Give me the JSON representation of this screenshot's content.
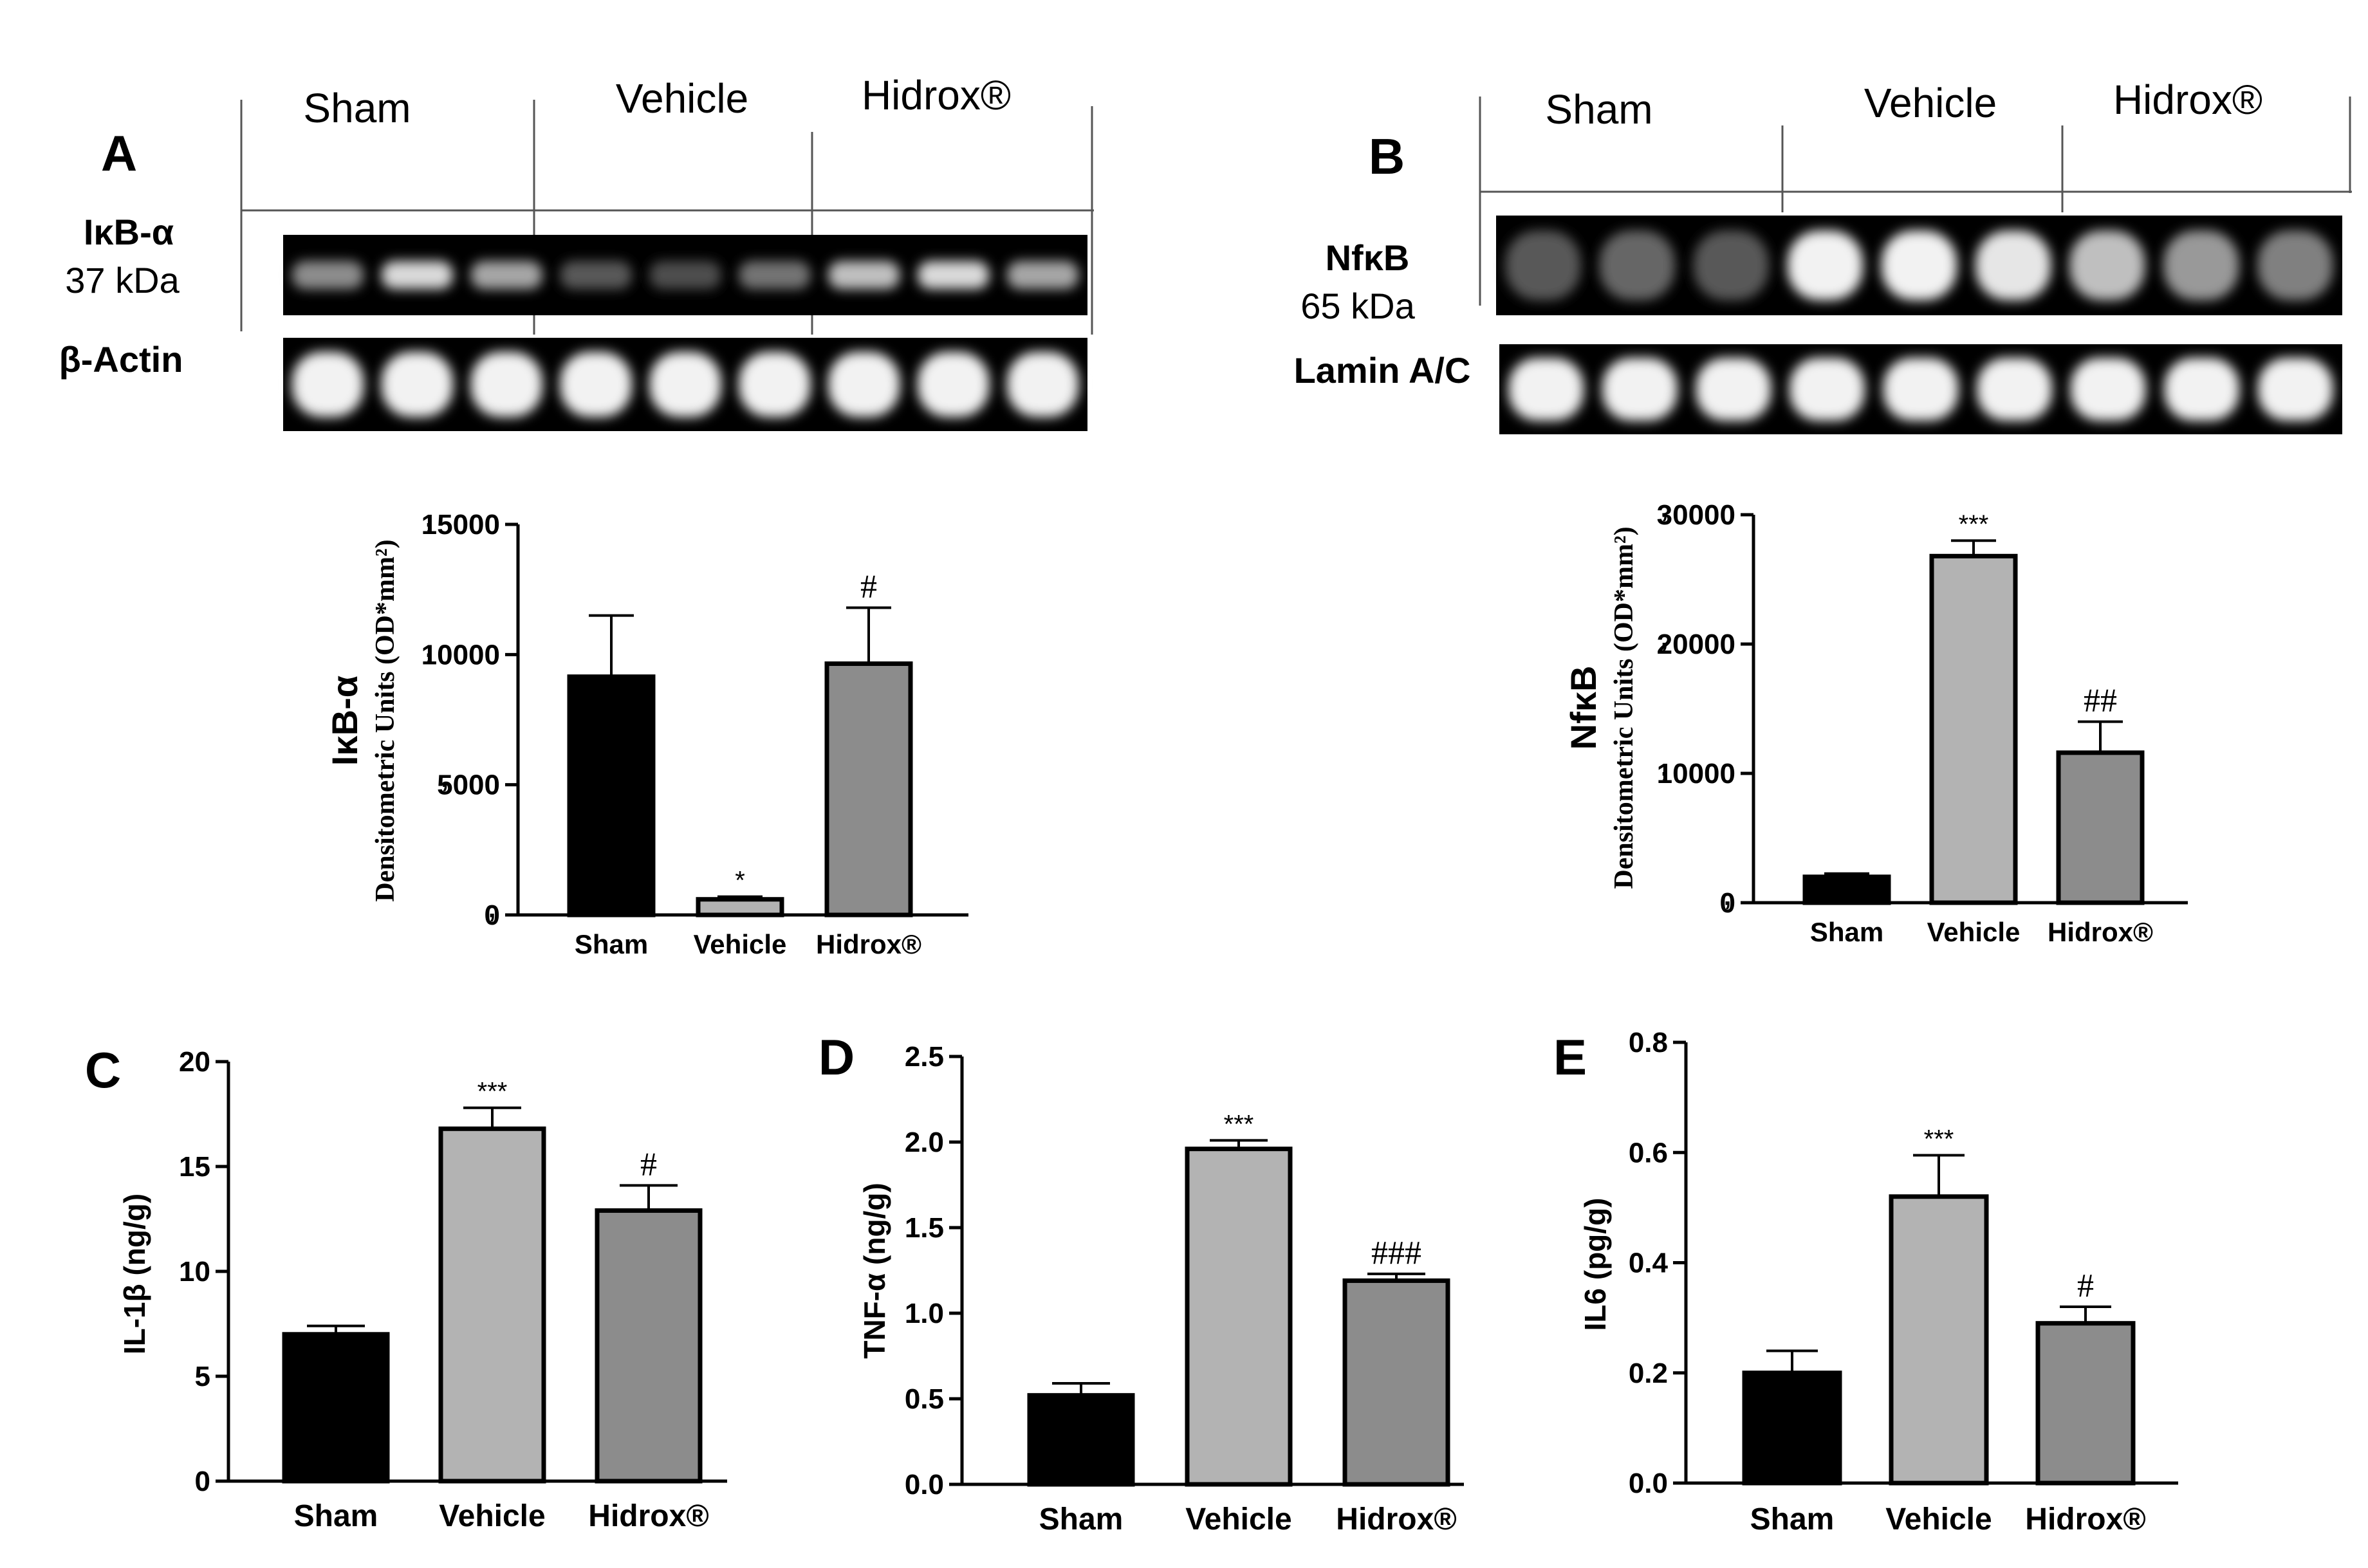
{
  "panels": {
    "A": {
      "letter": "A",
      "blot": {
        "groups": [
          "Sham",
          "Vehicle",
          "Hidrox®"
        ],
        "rows": [
          {
            "label": "IκB-α",
            "sublabel": "37 kDa",
            "intensities": [
              0.55,
              0.85,
              0.65,
              0.35,
              0.3,
              0.45,
              0.75,
              0.85,
              0.65
            ],
            "band_height": 0.35
          },
          {
            "label": "β-Actin",
            "sublabel": "",
            "intensities": [
              0.95,
              0.95,
              0.95,
              0.95,
              0.95,
              0.95,
              0.95,
              0.95,
              0.95
            ],
            "band_height": 0.7
          }
        ]
      }
    },
    "B": {
      "letter": "B",
      "blot": {
        "groups": [
          "Sham",
          "Vehicle",
          "Hidrox®"
        ],
        "rows": [
          {
            "label": "NfκB",
            "sublabel": "65 kDa",
            "intensities": [
              0.35,
              0.4,
              0.35,
              0.95,
              0.95,
              0.9,
              0.75,
              0.6,
              0.5
            ],
            "band_height": 0.7
          },
          {
            "label": "Lamin A/C",
            "sublabel": "",
            "intensities": [
              0.95,
              0.95,
              0.95,
              0.95,
              0.95,
              0.95,
              0.95,
              0.95,
              0.95
            ],
            "band_height": 0.7
          }
        ]
      }
    },
    "C": {
      "letter": "C"
    },
    "D": {
      "letter": "D"
    },
    "E": {
      "letter": "E"
    }
  },
  "chart_data": [
    {
      "id": "A",
      "type": "bar",
      "categories": [
        "Sham",
        "Vehicle",
        "Hidrox®"
      ],
      "values": [
        9150,
        600,
        9650
      ],
      "errors": [
        2350,
        100,
        2150
      ],
      "annotations": [
        "",
        "*",
        "#"
      ],
      "ylabel_main": "IκB-α",
      "ylabel_sub": "Densitometric Units (OD*mm²)",
      "ylim": [
        0,
        15000
      ],
      "ticks": [
        0,
        5000,
        10000,
        15000
      ],
      "tick_labels": [
        "0",
        "5000",
        "10000",
        "15000"
      ],
      "colors": [
        "#000000",
        "#b3b3b3",
        "#8c8c8c"
      ]
    },
    {
      "id": "B",
      "type": "bar",
      "categories": [
        "Sham",
        "Vehicle",
        "Hidrox®"
      ],
      "values": [
        2000,
        26800,
        11600
      ],
      "errors": [
        250,
        1200,
        2400
      ],
      "annotations": [
        "",
        "***",
        "##"
      ],
      "ylabel_main": "NfκB",
      "ylabel_sub": "Densitometric Units (OD*mm²)",
      "ylim": [
        0,
        30000
      ],
      "ticks": [
        0,
        10000,
        20000,
        30000
      ],
      "tick_labels": [
        "0",
        "10000",
        "20000",
        "30000"
      ],
      "colors": [
        "#000000",
        "#b3b3b3",
        "#8c8c8c"
      ]
    },
    {
      "id": "C",
      "type": "bar",
      "categories": [
        "Sham",
        "Vehicle",
        "Hidrox®"
      ],
      "values": [
        7.0,
        16.8,
        12.9
      ],
      "errors": [
        0.4,
        1.0,
        1.2
      ],
      "annotations": [
        "",
        "***",
        "#"
      ],
      "ylabel_main": "IL-1β (ng/g)",
      "ylabel_sub": "",
      "ylim": [
        0,
        20
      ],
      "ticks": [
        0,
        5,
        10,
        15,
        20
      ],
      "tick_labels": [
        "0",
        "5",
        "10",
        "15",
        "20"
      ],
      "colors": [
        "#000000",
        "#b3b3b3",
        "#8c8c8c"
      ]
    },
    {
      "id": "D",
      "type": "bar",
      "categories": [
        "Sham",
        "Vehicle",
        "Hidrox®"
      ],
      "values": [
        0.52,
        1.96,
        1.19
      ],
      "errors": [
        0.07,
        0.05,
        0.04
      ],
      "annotations": [
        "",
        "***",
        "###"
      ],
      "ylabel_main": "TNF-α (ng/g)",
      "ylabel_sub": "",
      "ylim": [
        0,
        2.5
      ],
      "ticks": [
        0,
        0.5,
        1.0,
        1.5,
        2.0,
        2.5
      ],
      "tick_labels": [
        "0.0",
        "0.5",
        "1.0",
        "1.5",
        "2.0",
        "2.5"
      ],
      "colors": [
        "#000000",
        "#b3b3b3",
        "#8c8c8c"
      ]
    },
    {
      "id": "E",
      "type": "bar",
      "categories": [
        "Sham",
        "Vehicle",
        "Hidrox®"
      ],
      "values": [
        0.2,
        0.52,
        0.29
      ],
      "errors": [
        0.04,
        0.075,
        0.03
      ],
      "annotations": [
        "",
        "***",
        "#"
      ],
      "ylabel_main": "IL6 (pg/g)",
      "ylabel_sub": "",
      "ylim": [
        0,
        0.8
      ],
      "ticks": [
        0,
        0.2,
        0.4,
        0.6,
        0.8
      ],
      "tick_labels": [
        "0.0",
        "0.2",
        "0.4",
        "0.6",
        "0.8"
      ],
      "colors": [
        "#000000",
        "#b3b3b3",
        "#8c8c8c"
      ]
    }
  ]
}
